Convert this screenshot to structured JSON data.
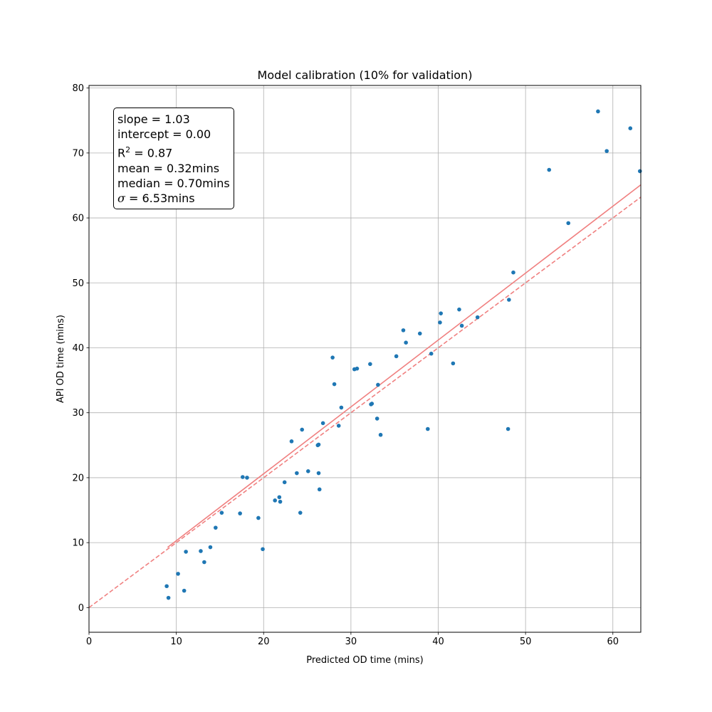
{
  "chart_data": {
    "type": "scatter",
    "title": "Model calibration (10% for validation)",
    "xlabel": "Predicted OD time (mins)",
    "ylabel": "API OD time (mins)",
    "xlim": [
      0,
      63.2
    ],
    "ylim": [
      -3.8,
      80.4
    ],
    "xticks": [
      0,
      10,
      20,
      30,
      40,
      50,
      60
    ],
    "yticks": [
      0,
      10,
      20,
      30,
      40,
      50,
      60,
      70,
      80
    ],
    "grid": true,
    "colors": {
      "points": "#1f77b4",
      "fit_line": "#f08080",
      "reference_line": "#f08080"
    },
    "points": {
      "x": [
        8.9,
        9.1,
        10.2,
        10.9,
        11.1,
        12.8,
        13.2,
        13.9,
        14.5,
        15.2,
        17.3,
        17.6,
        18.1,
        19.4,
        19.9,
        21.3,
        21.8,
        21.9,
        22.4,
        23.2,
        23.8,
        24.2,
        24.4,
        25.1,
        26.2,
        26.3,
        26.3,
        26.4,
        26.8,
        27.9,
        28.1,
        28.6,
        28.9,
        30.4,
        30.7,
        32.2,
        32.3,
        32.4,
        33.0,
        33.1,
        33.4,
        35.2,
        36.0,
        36.3,
        37.9,
        38.8,
        39.2,
        40.2,
        40.3,
        41.7,
        42.4,
        42.7,
        44.5,
        48.0,
        48.1,
        48.6,
        52.7,
        54.9,
        58.3,
        59.3,
        62.0,
        63.1
      ],
      "y": [
        3.3,
        1.5,
        5.2,
        2.6,
        8.6,
        8.7,
        7.0,
        9.3,
        12.3,
        14.6,
        14.5,
        20.1,
        20.0,
        13.8,
        9.0,
        16.5,
        17.0,
        16.3,
        19.3,
        25.6,
        20.7,
        14.6,
        27.4,
        21.0,
        25.0,
        25.1,
        20.7,
        18.2,
        28.4,
        38.5,
        34.4,
        28.0,
        30.8,
        36.7,
        36.8,
        37.5,
        31.3,
        31.4,
        29.1,
        34.3,
        26.6,
        38.7,
        42.7,
        40.8,
        42.2,
        27.5,
        39.1,
        43.9,
        45.3,
        37.6,
        45.9,
        43.4,
        44.7,
        27.5,
        47.4,
        51.6,
        67.4,
        59.2,
        76.4,
        70.3,
        73.8,
        67.2
      ]
    },
    "fit_line": {
      "slope": 1.03,
      "intercept": 0.0,
      "x_range": [
        9.0,
        63.2
      ]
    },
    "reference_line": {
      "slope": 1.0,
      "intercept": 0.0,
      "x_range": [
        0,
        63.2
      ]
    },
    "stats": {
      "slope": "slope = 1.03",
      "intercept": "intercept = 0.00",
      "r2_prefix": "R",
      "r2_sup": "2",
      "r2_value": " = 0.87",
      "mean": "mean = 0.32mins",
      "median": "median = 0.70mins",
      "sigma_symbol": "σ",
      "sigma_value": " = 6.53mins"
    },
    "legend_position": "top-left"
  }
}
